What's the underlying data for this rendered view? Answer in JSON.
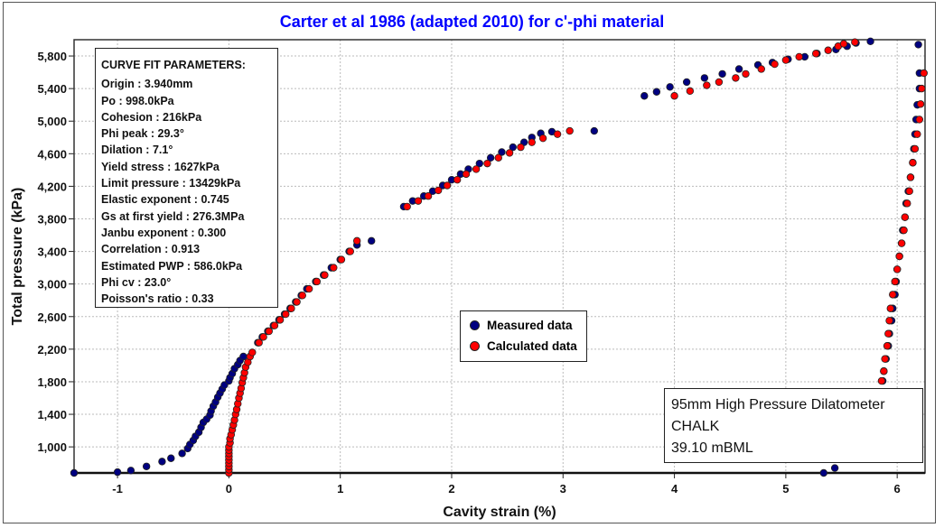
{
  "chart_data": {
    "type": "scatter",
    "title": "Carter et al 1986 (adapted 2010) for c'-phi material",
    "xlabel": "Cavity strain (%)",
    "ylabel": "Total pressure (kPa)",
    "xlim": [
      -1.39,
      6.25
    ],
    "ylim": [
      680,
      6000
    ],
    "xticks": [
      -1,
      0,
      1,
      2,
      3,
      4,
      5,
      6
    ],
    "xtick_labels": [
      "-1",
      "0",
      "1",
      "2",
      "3",
      "4",
      "5",
      "6"
    ],
    "yticks": [
      1000,
      1400,
      1800,
      2200,
      2600,
      3000,
      3400,
      3800,
      4200,
      4600,
      5000,
      5400,
      5800
    ],
    "ytick_labels": [
      "1,000",
      "1,400",
      "1,800",
      "2,200",
      "2,600",
      "3,000",
      "3,400",
      "3,800",
      "4,200",
      "4,600",
      "5,000",
      "5,400",
      "5,800"
    ],
    "grid": true,
    "legend_placement": "center",
    "series": [
      {
        "name": "Measured data",
        "color": "#000080",
        "points": [
          [
            -1.39,
            680
          ],
          [
            -1.0,
            690
          ],
          [
            -0.88,
            710
          ],
          [
            -0.74,
            760
          ],
          [
            -0.6,
            820
          ],
          [
            -0.52,
            860
          ],
          [
            -0.42,
            920
          ],
          [
            -0.37,
            980
          ],
          [
            -0.35,
            1030
          ],
          [
            -0.32,
            1080
          ],
          [
            -0.3,
            1130
          ],
          [
            -0.27,
            1180
          ],
          [
            -0.25,
            1240
          ],
          [
            -0.23,
            1300
          ],
          [
            -0.2,
            1340
          ],
          [
            -0.17,
            1390
          ],
          [
            -0.16,
            1440
          ],
          [
            -0.14,
            1500
          ],
          [
            -0.12,
            1550
          ],
          [
            -0.1,
            1610
          ],
          [
            -0.08,
            1660
          ],
          [
            -0.06,
            1710
          ],
          [
            -0.04,
            1760
          ],
          [
            0.0,
            1810
          ],
          [
            0.01,
            1850
          ],
          [
            0.03,
            1900
          ],
          [
            0.05,
            1960
          ],
          [
            0.08,
            2010
          ],
          [
            0.1,
            2060
          ],
          [
            0.13,
            2110
          ],
          [
            0.26,
            2280
          ],
          [
            0.3,
            2350
          ],
          [
            0.35,
            2420
          ],
          [
            0.4,
            2490
          ],
          [
            0.45,
            2560
          ],
          [
            0.5,
            2630
          ],
          [
            0.55,
            2700
          ],
          [
            0.6,
            2780
          ],
          [
            0.65,
            2860
          ],
          [
            0.7,
            2940
          ],
          [
            0.78,
            3030
          ],
          [
            0.85,
            3110
          ],
          [
            0.92,
            3200
          ],
          [
            1.0,
            3300
          ],
          [
            1.08,
            3400
          ],
          [
            1.15,
            3480
          ],
          [
            1.28,
            3530
          ],
          [
            1.57,
            3950
          ],
          [
            1.65,
            4020
          ],
          [
            1.75,
            4080
          ],
          [
            1.83,
            4140
          ],
          [
            1.92,
            4210
          ],
          [
            2.0,
            4280
          ],
          [
            2.08,
            4350
          ],
          [
            2.15,
            4410
          ],
          [
            2.25,
            4480
          ],
          [
            2.35,
            4550
          ],
          [
            2.45,
            4620
          ],
          [
            2.55,
            4680
          ],
          [
            2.65,
            4740
          ],
          [
            2.72,
            4800
          ],
          [
            2.8,
            4850
          ],
          [
            2.9,
            4870
          ],
          [
            3.28,
            4880
          ],
          [
            3.73,
            5310
          ],
          [
            3.84,
            5360
          ],
          [
            3.96,
            5420
          ],
          [
            4.11,
            5480
          ],
          [
            4.27,
            5530
          ],
          [
            4.43,
            5580
          ],
          [
            4.58,
            5640
          ],
          [
            4.75,
            5690
          ],
          [
            4.88,
            5720
          ],
          [
            5.02,
            5760
          ],
          [
            5.17,
            5790
          ],
          [
            5.28,
            5830
          ],
          [
            5.45,
            5880
          ],
          [
            5.55,
            5920
          ],
          [
            5.63,
            5960
          ],
          [
            5.76,
            5980
          ],
          [
            6.19,
            5940
          ],
          [
            6.2,
            5590
          ],
          [
            6.2,
            5400
          ],
          [
            6.18,
            5200
          ],
          [
            6.17,
            5020
          ],
          [
            6.16,
            4840
          ],
          [
            6.15,
            4660
          ],
          [
            6.14,
            4490
          ],
          [
            6.12,
            4310
          ],
          [
            6.1,
            4140
          ],
          [
            6.08,
            3990
          ],
          [
            6.07,
            3820
          ],
          [
            6.05,
            3660
          ],
          [
            6.04,
            3500
          ],
          [
            6.02,
            3340
          ],
          [
            6.0,
            3180
          ],
          [
            5.99,
            3030
          ],
          [
            5.98,
            2870
          ],
          [
            5.96,
            2700
          ],
          [
            5.95,
            2550
          ],
          [
            5.93,
            2390
          ],
          [
            5.92,
            2240
          ],
          [
            5.9,
            2080
          ],
          [
            5.88,
            1930
          ],
          [
            5.87,
            1810
          ],
          [
            5.44,
            740
          ],
          [
            5.34,
            680
          ]
        ]
      },
      {
        "name": "Calculated data",
        "color": "#ff0000",
        "points": [
          [
            0,
            680
          ],
          [
            0,
            720
          ],
          [
            0,
            760
          ],
          [
            0,
            800
          ],
          [
            0,
            840
          ],
          [
            0,
            880
          ],
          [
            0,
            920
          ],
          [
            0,
            960
          ],
          [
            0,
            1000
          ],
          [
            0.01,
            1050
          ],
          [
            0.01,
            1100
          ],
          [
            0.02,
            1150
          ],
          [
            0.03,
            1210
          ],
          [
            0.04,
            1270
          ],
          [
            0.05,
            1330
          ],
          [
            0.06,
            1400
          ],
          [
            0.07,
            1460
          ],
          [
            0.08,
            1530
          ],
          [
            0.09,
            1600
          ],
          [
            0.1,
            1660
          ],
          [
            0.11,
            1720
          ],
          [
            0.12,
            1790
          ],
          [
            0.13,
            1850
          ],
          [
            0.14,
            1910
          ],
          [
            0.15,
            1980
          ],
          [
            0.17,
            2040
          ],
          [
            0.19,
            2110
          ],
          [
            0.21,
            2160
          ],
          [
            0.27,
            2280
          ],
          [
            0.31,
            2350
          ],
          [
            0.36,
            2420
          ],
          [
            0.41,
            2490
          ],
          [
            0.46,
            2560
          ],
          [
            0.51,
            2630
          ],
          [
            0.56,
            2700
          ],
          [
            0.61,
            2780
          ],
          [
            0.66,
            2860
          ],
          [
            0.72,
            2940
          ],
          [
            0.79,
            3030
          ],
          [
            0.86,
            3110
          ],
          [
            0.94,
            3200
          ],
          [
            1.01,
            3300
          ],
          [
            1.09,
            3400
          ],
          [
            1.15,
            3530
          ],
          [
            1.6,
            3950
          ],
          [
            1.7,
            4020
          ],
          [
            1.79,
            4080
          ],
          [
            1.88,
            4150
          ],
          [
            1.96,
            4210
          ],
          [
            2.05,
            4280
          ],
          [
            2.13,
            4350
          ],
          [
            2.22,
            4410
          ],
          [
            2.32,
            4480
          ],
          [
            2.42,
            4550
          ],
          [
            2.52,
            4610
          ],
          [
            2.62,
            4680
          ],
          [
            2.72,
            4740
          ],
          [
            2.82,
            4790
          ],
          [
            2.95,
            4840
          ],
          [
            3.06,
            4880
          ],
          [
            4.0,
            5310
          ],
          [
            4.14,
            5370
          ],
          [
            4.29,
            5440
          ],
          [
            4.4,
            5480
          ],
          [
            4.55,
            5530
          ],
          [
            4.64,
            5580
          ],
          [
            4.78,
            5640
          ],
          [
            4.9,
            5700
          ],
          [
            5.0,
            5750
          ],
          [
            5.12,
            5790
          ],
          [
            5.27,
            5830
          ],
          [
            5.38,
            5870
          ],
          [
            5.47,
            5920
          ],
          [
            5.52,
            5950
          ],
          [
            5.62,
            5970
          ],
          [
            6.24,
            5590
          ],
          [
            6.22,
            5400
          ],
          [
            6.21,
            5210
          ],
          [
            6.2,
            5020
          ],
          [
            6.18,
            4840
          ],
          [
            6.16,
            4660
          ],
          [
            6.14,
            4490
          ],
          [
            6.12,
            4310
          ],
          [
            6.11,
            4140
          ],
          [
            6.09,
            3990
          ],
          [
            6.07,
            3820
          ],
          [
            6.06,
            3660
          ],
          [
            6.04,
            3500
          ],
          [
            6.02,
            3340
          ],
          [
            6.0,
            3180
          ],
          [
            5.98,
            3030
          ],
          [
            5.96,
            2870
          ],
          [
            5.94,
            2700
          ],
          [
            5.93,
            2550
          ],
          [
            5.92,
            2390
          ],
          [
            5.91,
            2240
          ],
          [
            5.89,
            2080
          ],
          [
            5.88,
            1930
          ],
          [
            5.86,
            1810
          ]
        ]
      }
    ],
    "annotations": {
      "params_title": "CURVE FIT PARAMETERS:",
      "params": [
        "Origin : 3.940mm",
        "Po : 998.0kPa",
        "Cohesion : 216kPa",
        "Phi peak : 29.3°",
        "Dilation : 7.1°",
        "Yield stress : 1627kPa",
        "Limit pressure : 13429kPa",
        "Elastic exponent : 0.745",
        "Gs at first yield : 276.3MPa",
        "Janbu exponent : 0.300",
        "Correlation : 0.913",
        "Estimated PWP : 586.0kPa",
        "Phi cv : 23.0°",
        "Poisson's ratio : 0.33"
      ],
      "info": [
        "95mm High Pressure Dilatometer",
        "CHALK",
        "39.10 mBML"
      ]
    }
  }
}
